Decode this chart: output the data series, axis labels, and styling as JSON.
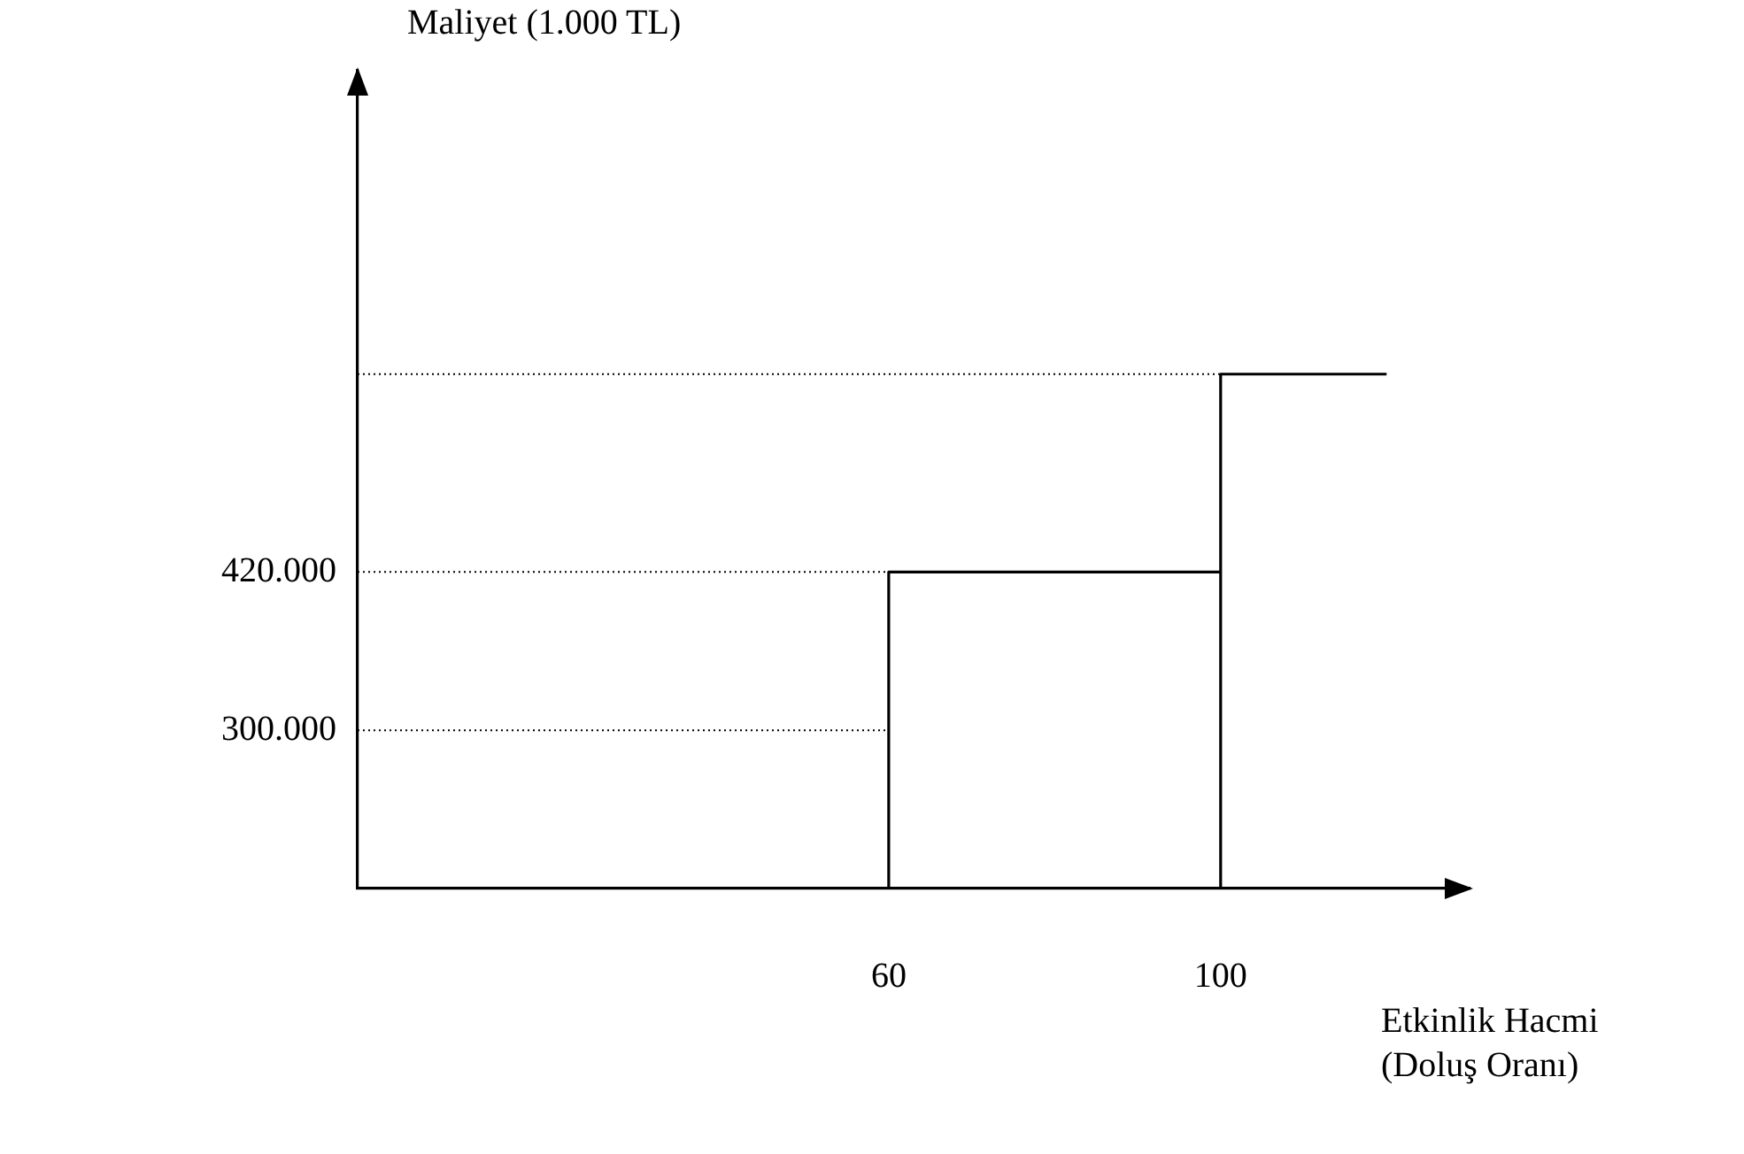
{
  "chart_data": {
    "type": "line",
    "xlabel": "Etkinlik Hacmi (Doluş Oranı)",
    "ylabel": "Maliyet (1.000 TL)",
    "xlim": [
      -4,
      130
    ],
    "xticks": [
      60,
      100
    ],
    "ylim": [
      180000,
      800000
    ],
    "yticks": [
      {
        "value": 300000,
        "label": "300.000"
      },
      {
        "value": 420000,
        "label": "420.000"
      }
    ],
    "grid": false,
    "legend": false,
    "marker": "none",
    "series": [
      {
        "x": [
          60,
          60,
          100
        ],
        "values": [
          180000,
          420000,
          420000
        ],
        "color": "#000000",
        "line_style": "solid"
      },
      {
        "x": [
          100,
          100,
          120
        ],
        "values": [
          180000,
          570000,
          570000
        ],
        "color": "#000000",
        "line_style": "solid"
      },
      {
        "x": [
          -4,
          60
        ],
        "values": [
          300000,
          300000
        ],
        "color": "#000000",
        "line_style": "dotted"
      },
      {
        "x": [
          -4,
          60
        ],
        "values": [
          420000,
          420000
        ],
        "color": "#000000",
        "line_style": "dotted"
      },
      {
        "x": [
          -4,
          100
        ],
        "values": [
          570000,
          570000
        ],
        "color": "#000000",
        "line_style": "dotted"
      }
    ]
  }
}
